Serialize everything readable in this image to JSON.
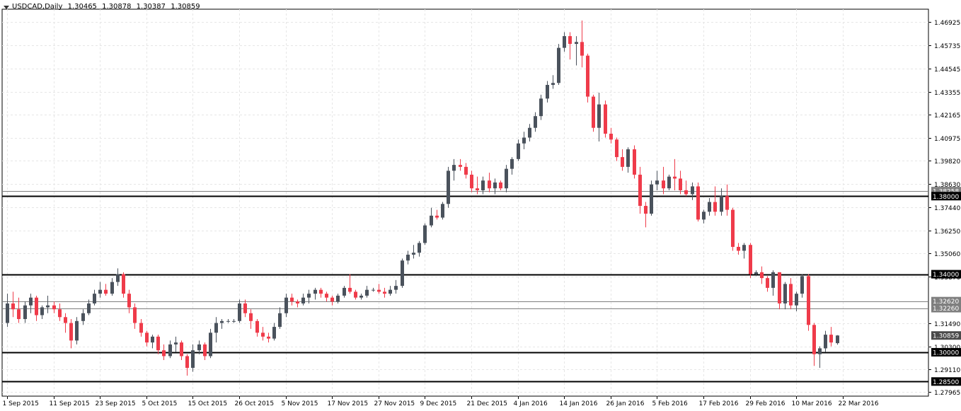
{
  "header": {
    "symbol_label": "USDCAD,Daily",
    "ohlc": {
      "open": "1.30465",
      "high": "1.30878",
      "low": "1.30387",
      "close": "1.30859"
    }
  },
  "colors": {
    "background": "#ffffff",
    "bull_candle": "#4a525c",
    "bear_candle": "#ef3b4a",
    "grid": "#e6e6e6",
    "level_line_thick": "#000000",
    "level_line_thin": "#7f7f7f",
    "label_bg_dark": "#000000",
    "label_bg_gray": "#7f7f7f",
    "label_text": "#ffffff"
  },
  "chart_data": {
    "type": "candlestick",
    "symbol": "USDCAD",
    "timeframe": "Daily",
    "ylim": [
      1.2775,
      1.4758
    ],
    "y_ticks": [
      1.46925,
      1.45735,
      1.44545,
      1.43355,
      1.42165,
      1.40975,
      1.3982,
      1.3863,
      1.3744,
      1.3625,
      1.3506,
      1.3387,
      1.3149,
      1.303,
      1.2911,
      1.27965
    ],
    "y_tick_labels": [
      "1.46925",
      "1.45735",
      "1.44545",
      "1.43355",
      "1.42165",
      "1.40975",
      "1.39820",
      "1.38630",
      "1.37440",
      "1.36250",
      "1.35060",
      "1.33870",
      "1.31490",
      "1.30300",
      "1.29110",
      "1.27965"
    ],
    "x_labels": [
      {
        "label": "1 Sep 2015",
        "index": 0
      },
      {
        "label": "11 Sep 2015",
        "index": 8
      },
      {
        "label": "23 Sep 2015",
        "index": 16
      },
      {
        "label": "5 Oct 2015",
        "index": 24
      },
      {
        "label": "15 Oct 2015",
        "index": 32
      },
      {
        "label": "26 Oct 2015",
        "index": 40
      },
      {
        "label": "5 Nov 2015",
        "index": 48
      },
      {
        "label": "17 Nov 2015",
        "index": 56
      },
      {
        "label": "27 Nov 2015",
        "index": 64
      },
      {
        "label": "9 Dec 2015",
        "index": 72
      },
      {
        "label": "21 Dec 2015",
        "index": 80
      },
      {
        "label": "4 Jan 2016",
        "index": 88
      },
      {
        "label": "14 Jan 2016",
        "index": 96
      },
      {
        "label": "26 Jan 2016",
        "index": 104
      },
      {
        "label": "5 Feb 2016",
        "index": 112
      },
      {
        "label": "17 Feb 2016",
        "index": 120
      },
      {
        "label": "29 Feb 2016",
        "index": 128
      },
      {
        "label": "10 Mar 2016",
        "index": 136
      },
      {
        "label": "22 Mar 2016",
        "index": 144
      }
    ],
    "levels": [
      {
        "price": 1.38258,
        "label": "1.38258",
        "style": "thin"
      },
      {
        "price": 1.38,
        "label": "1.38000",
        "style": "thick"
      },
      {
        "price": 1.34,
        "label": "1.34000",
        "style": "thick"
      },
      {
        "price": 1.3262,
        "label": "1.32620",
        "style": "thin"
      },
      {
        "price": 1.3226,
        "label": "1.32260",
        "style": "thin"
      },
      {
        "price": 1.30859,
        "label": "1.30859",
        "style": "current"
      },
      {
        "price": 1.3,
        "label": "1.30000",
        "style": "thick"
      },
      {
        "price": 1.285,
        "label": "1.28500",
        "style": "thick"
      }
    ],
    "candles": [
      [
        1.315,
        1.33,
        1.313,
        1.325
      ],
      [
        1.325,
        1.331,
        1.318,
        1.322
      ],
      [
        1.322,
        1.328,
        1.315,
        1.317
      ],
      [
        1.317,
        1.326,
        1.315,
        1.324
      ],
      [
        1.324,
        1.33,
        1.32,
        1.328
      ],
      [
        1.328,
        1.329,
        1.316,
        1.319
      ],
      [
        1.319,
        1.324,
        1.317,
        1.323
      ],
      [
        1.323,
        1.329,
        1.32,
        1.324
      ],
      [
        1.324,
        1.326,
        1.32,
        1.322
      ],
      [
        1.322,
        1.325,
        1.316,
        1.318
      ],
      [
        1.318,
        1.32,
        1.31,
        1.315
      ],
      [
        1.315,
        1.317,
        1.302,
        1.306
      ],
      [
        1.306,
        1.318,
        1.304,
        1.316
      ],
      [
        1.316,
        1.322,
        1.314,
        1.32
      ],
      [
        1.32,
        1.327,
        1.319,
        1.325
      ],
      [
        1.325,
        1.332,
        1.324,
        1.33
      ],
      [
        1.33,
        1.336,
        1.328,
        1.332
      ],
      [
        1.332,
        1.335,
        1.329,
        1.33
      ],
      [
        1.33,
        1.338,
        1.329,
        1.336
      ],
      [
        1.336,
        1.343,
        1.334,
        1.34
      ],
      [
        1.34,
        1.341,
        1.328,
        1.33
      ],
      [
        1.33,
        1.332,
        1.32,
        1.323
      ],
      [
        1.323,
        1.325,
        1.312,
        1.315
      ],
      [
        1.315,
        1.317,
        1.308,
        1.31
      ],
      [
        1.31,
        1.311,
        1.303,
        1.305
      ],
      [
        1.305,
        1.309,
        1.302,
        1.308
      ],
      [
        1.308,
        1.309,
        1.299,
        1.301
      ],
      [
        1.301,
        1.304,
        1.296,
        1.298
      ],
      [
        1.298,
        1.306,
        1.297,
        1.304
      ],
      [
        1.304,
        1.308,
        1.3,
        1.305
      ],
      [
        1.305,
        1.306,
        1.296,
        1.298
      ],
      [
        1.298,
        1.299,
        1.288,
        1.292
      ],
      [
        1.292,
        1.304,
        1.29,
        1.301
      ],
      [
        1.301,
        1.306,
        1.299,
        1.304
      ],
      [
        1.304,
        1.305,
        1.296,
        1.298
      ],
      [
        1.298,
        1.312,
        1.297,
        1.31
      ],
      [
        1.31,
        1.318,
        1.305,
        1.315
      ],
      [
        1.315,
        1.317,
        1.312,
        1.316
      ],
      [
        1.316,
        1.317,
        1.315,
        1.316
      ],
      [
        1.316,
        1.317,
        1.315,
        1.316
      ],
      [
        1.316,
        1.327,
        1.315,
        1.325
      ],
      [
        1.325,
        1.327,
        1.318,
        1.32
      ],
      [
        1.32,
        1.322,
        1.312,
        1.316
      ],
      [
        1.316,
        1.317,
        1.308,
        1.31
      ],
      [
        1.31,
        1.313,
        1.306,
        1.308
      ],
      [
        1.308,
        1.31,
        1.305,
        1.307
      ],
      [
        1.307,
        1.315,
        1.306,
        1.313
      ],
      [
        1.313,
        1.323,
        1.312,
        1.32
      ],
      [
        1.32,
        1.33,
        1.318,
        1.328
      ],
      [
        1.328,
        1.33,
        1.324,
        1.326
      ],
      [
        1.326,
        1.327,
        1.323,
        1.325
      ],
      [
        1.325,
        1.33,
        1.324,
        1.328
      ],
      [
        1.328,
        1.332,
        1.325,
        1.33
      ],
      [
        1.33,
        1.333,
        1.327,
        1.332
      ],
      [
        1.332,
        1.333,
        1.328,
        1.33
      ],
      [
        1.33,
        1.331,
        1.326,
        1.328
      ],
      [
        1.328,
        1.329,
        1.324,
        1.326
      ],
      [
        1.326,
        1.33,
        1.325,
        1.329
      ],
      [
        1.329,
        1.334,
        1.328,
        1.333
      ],
      [
        1.333,
        1.34,
        1.33,
        1.331
      ],
      [
        1.331,
        1.332,
        1.327,
        1.328
      ],
      [
        1.328,
        1.33,
        1.327,
        1.329
      ],
      [
        1.329,
        1.334,
        1.328,
        1.332
      ],
      [
        1.332,
        1.333,
        1.331,
        1.332
      ],
      [
        1.332,
        1.335,
        1.33,
        1.331
      ],
      [
        1.331,
        1.333,
        1.328,
        1.33
      ],
      [
        1.33,
        1.334,
        1.329,
        1.332
      ],
      [
        1.332,
        1.337,
        1.33,
        1.334
      ],
      [
        1.334,
        1.348,
        1.333,
        1.347
      ],
      [
        1.347,
        1.352,
        1.345,
        1.35
      ],
      [
        1.35,
        1.355,
        1.348,
        1.351
      ],
      [
        1.351,
        1.357,
        1.349,
        1.356
      ],
      [
        1.356,
        1.366,
        1.355,
        1.365
      ],
      [
        1.365,
        1.374,
        1.364,
        1.37
      ],
      [
        1.37,
        1.373,
        1.368,
        1.369
      ],
      [
        1.369,
        1.377,
        1.368,
        1.376
      ],
      [
        1.376,
        1.395,
        1.374,
        1.393
      ],
      [
        1.393,
        1.399,
        1.388,
        1.396
      ],
      [
        1.396,
        1.399,
        1.393,
        1.395
      ],
      [
        1.395,
        1.397,
        1.389,
        1.391
      ],
      [
        1.391,
        1.393,
        1.382,
        1.384
      ],
      [
        1.384,
        1.39,
        1.381,
        1.383
      ],
      [
        1.383,
        1.39,
        1.381,
        1.388
      ],
      [
        1.388,
        1.392,
        1.382,
        1.384
      ],
      [
        1.384,
        1.389,
        1.381,
        1.387
      ],
      [
        1.387,
        1.388,
        1.383,
        1.384
      ],
      [
        1.384,
        1.396,
        1.382,
        1.394
      ],
      [
        1.394,
        1.4,
        1.391,
        1.399
      ],
      [
        1.399,
        1.409,
        1.398,
        1.407
      ],
      [
        1.407,
        1.413,
        1.404,
        1.41
      ],
      [
        1.41,
        1.417,
        1.408,
        1.415
      ],
      [
        1.415,
        1.423,
        1.413,
        1.421
      ],
      [
        1.421,
        1.432,
        1.419,
        1.43
      ],
      [
        1.43,
        1.439,
        1.428,
        1.437
      ],
      [
        1.437,
        1.442,
        1.435,
        1.438
      ],
      [
        1.438,
        1.458,
        1.437,
        1.456
      ],
      [
        1.456,
        1.464,
        1.454,
        1.462
      ],
      [
        1.462,
        1.464,
        1.45,
        1.458
      ],
      [
        1.458,
        1.462,
        1.447,
        1.459
      ],
      [
        1.459,
        1.47,
        1.446,
        1.452
      ],
      [
        1.452,
        1.453,
        1.428,
        1.431
      ],
      [
        1.431,
        1.432,
        1.413,
        1.415
      ],
      [
        1.415,
        1.433,
        1.408,
        1.427
      ],
      [
        1.427,
        1.429,
        1.41,
        1.412
      ],
      [
        1.412,
        1.415,
        1.407,
        1.409
      ],
      [
        1.409,
        1.41,
        1.398,
        1.4
      ],
      [
        1.4,
        1.404,
        1.393,
        1.395
      ],
      [
        1.395,
        1.405,
        1.392,
        1.404
      ],
      [
        1.404,
        1.406,
        1.389,
        1.391
      ],
      [
        1.391,
        1.395,
        1.371,
        1.375
      ],
      [
        1.375,
        1.377,
        1.364,
        1.371
      ],
      [
        1.371,
        1.388,
        1.37,
        1.386
      ],
      [
        1.386,
        1.393,
        1.383,
        1.388
      ],
      [
        1.388,
        1.395,
        1.381,
        1.384
      ],
      [
        1.384,
        1.391,
        1.383,
        1.39
      ],
      [
        1.39,
        1.399,
        1.383,
        1.389
      ],
      [
        1.389,
        1.393,
        1.381,
        1.383
      ],
      [
        1.383,
        1.388,
        1.38,
        1.381
      ],
      [
        1.381,
        1.387,
        1.378,
        1.385
      ],
      [
        1.385,
        1.387,
        1.367,
        1.368
      ],
      [
        1.368,
        1.373,
        1.366,
        1.372
      ],
      [
        1.372,
        1.379,
        1.37,
        1.377
      ],
      [
        1.377,
        1.385,
        1.37,
        1.372
      ],
      [
        1.372,
        1.384,
        1.37,
        1.38
      ],
      [
        1.38,
        1.386,
        1.37,
        1.373
      ],
      [
        1.373,
        1.374,
        1.352,
        1.354
      ],
      [
        1.354,
        1.356,
        1.35,
        1.352
      ],
      [
        1.352,
        1.356,
        1.348,
        1.355
      ],
      [
        1.355,
        1.356,
        1.338,
        1.34
      ],
      [
        1.34,
        1.342,
        1.339,
        1.341
      ],
      [
        1.341,
        1.344,
        1.335,
        1.338
      ],
      [
        1.338,
        1.339,
        1.331,
        1.333
      ],
      [
        1.333,
        1.342,
        1.329,
        1.341
      ],
      [
        1.341,
        1.341,
        1.322,
        1.325
      ],
      [
        1.325,
        1.336,
        1.322,
        1.335
      ],
      [
        1.335,
        1.338,
        1.322,
        1.324
      ],
      [
        1.324,
        1.331,
        1.321,
        1.33
      ],
      [
        1.33,
        1.34,
        1.328,
        1.339
      ],
      [
        1.339,
        1.34,
        1.311,
        1.314
      ],
      [
        1.314,
        1.315,
        1.293,
        1.299
      ],
      [
        1.299,
        1.303,
        1.292,
        1.302
      ],
      [
        1.302,
        1.311,
        1.3,
        1.309
      ],
      [
        1.309,
        1.313,
        1.303,
        1.305
      ],
      [
        1.30465,
        1.30878,
        1.30387,
        1.30859
      ]
    ]
  }
}
